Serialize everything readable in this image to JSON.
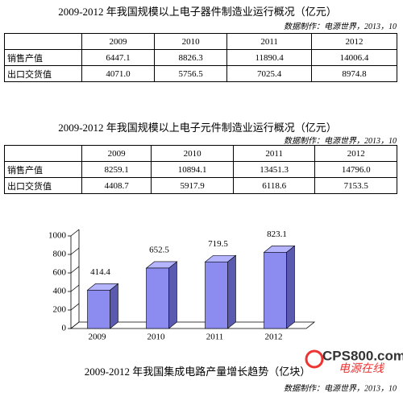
{
  "table1": {
    "title": "2009-2012 年我国规模以上电子器件制造业运行概况（亿元）",
    "source": "数据制作：电源世界，2013，10",
    "header": [
      "2009",
      "2010",
      "2011",
      "2012"
    ],
    "rows": [
      [
        "销售产值",
        "6447.1",
        "8826.3",
        "11890.4",
        "14006.4"
      ],
      [
        "出口交货值",
        "4071.0",
        "5756.5",
        "7025.4",
        "8974.8"
      ]
    ]
  },
  "table2": {
    "title": "2009-2012 年我国规模以上电子元件制造业运行概况（亿元）",
    "source": "数据制作：电源世界，2013，10",
    "header": [
      "2009",
      "2010",
      "2011",
      "2012"
    ],
    "rows": [
      [
        "销售产值",
        "8259.1",
        "10894.1",
        "13451.3",
        "14796.0"
      ],
      [
        "出口交货值",
        "4408.7",
        "5917.9",
        "6118.6",
        "7153.5"
      ]
    ]
  },
  "chart_data": {
    "type": "bar",
    "title": "2009-2012 年我国集成电路产量增长趋势（亿块）",
    "source": "数据制作：电源世界，2013，10",
    "categories": [
      "2009",
      "2010",
      "2011",
      "2012"
    ],
    "values": [
      414.4,
      652.5,
      719.5,
      823.1
    ],
    "color": "#8c8cf0",
    "ylim": [
      0,
      1000
    ],
    "yticks": [
      0,
      200,
      400,
      600,
      800,
      1000
    ]
  },
  "watermark": {
    "logo": "CPS800.com",
    "text": "电源在线"
  }
}
